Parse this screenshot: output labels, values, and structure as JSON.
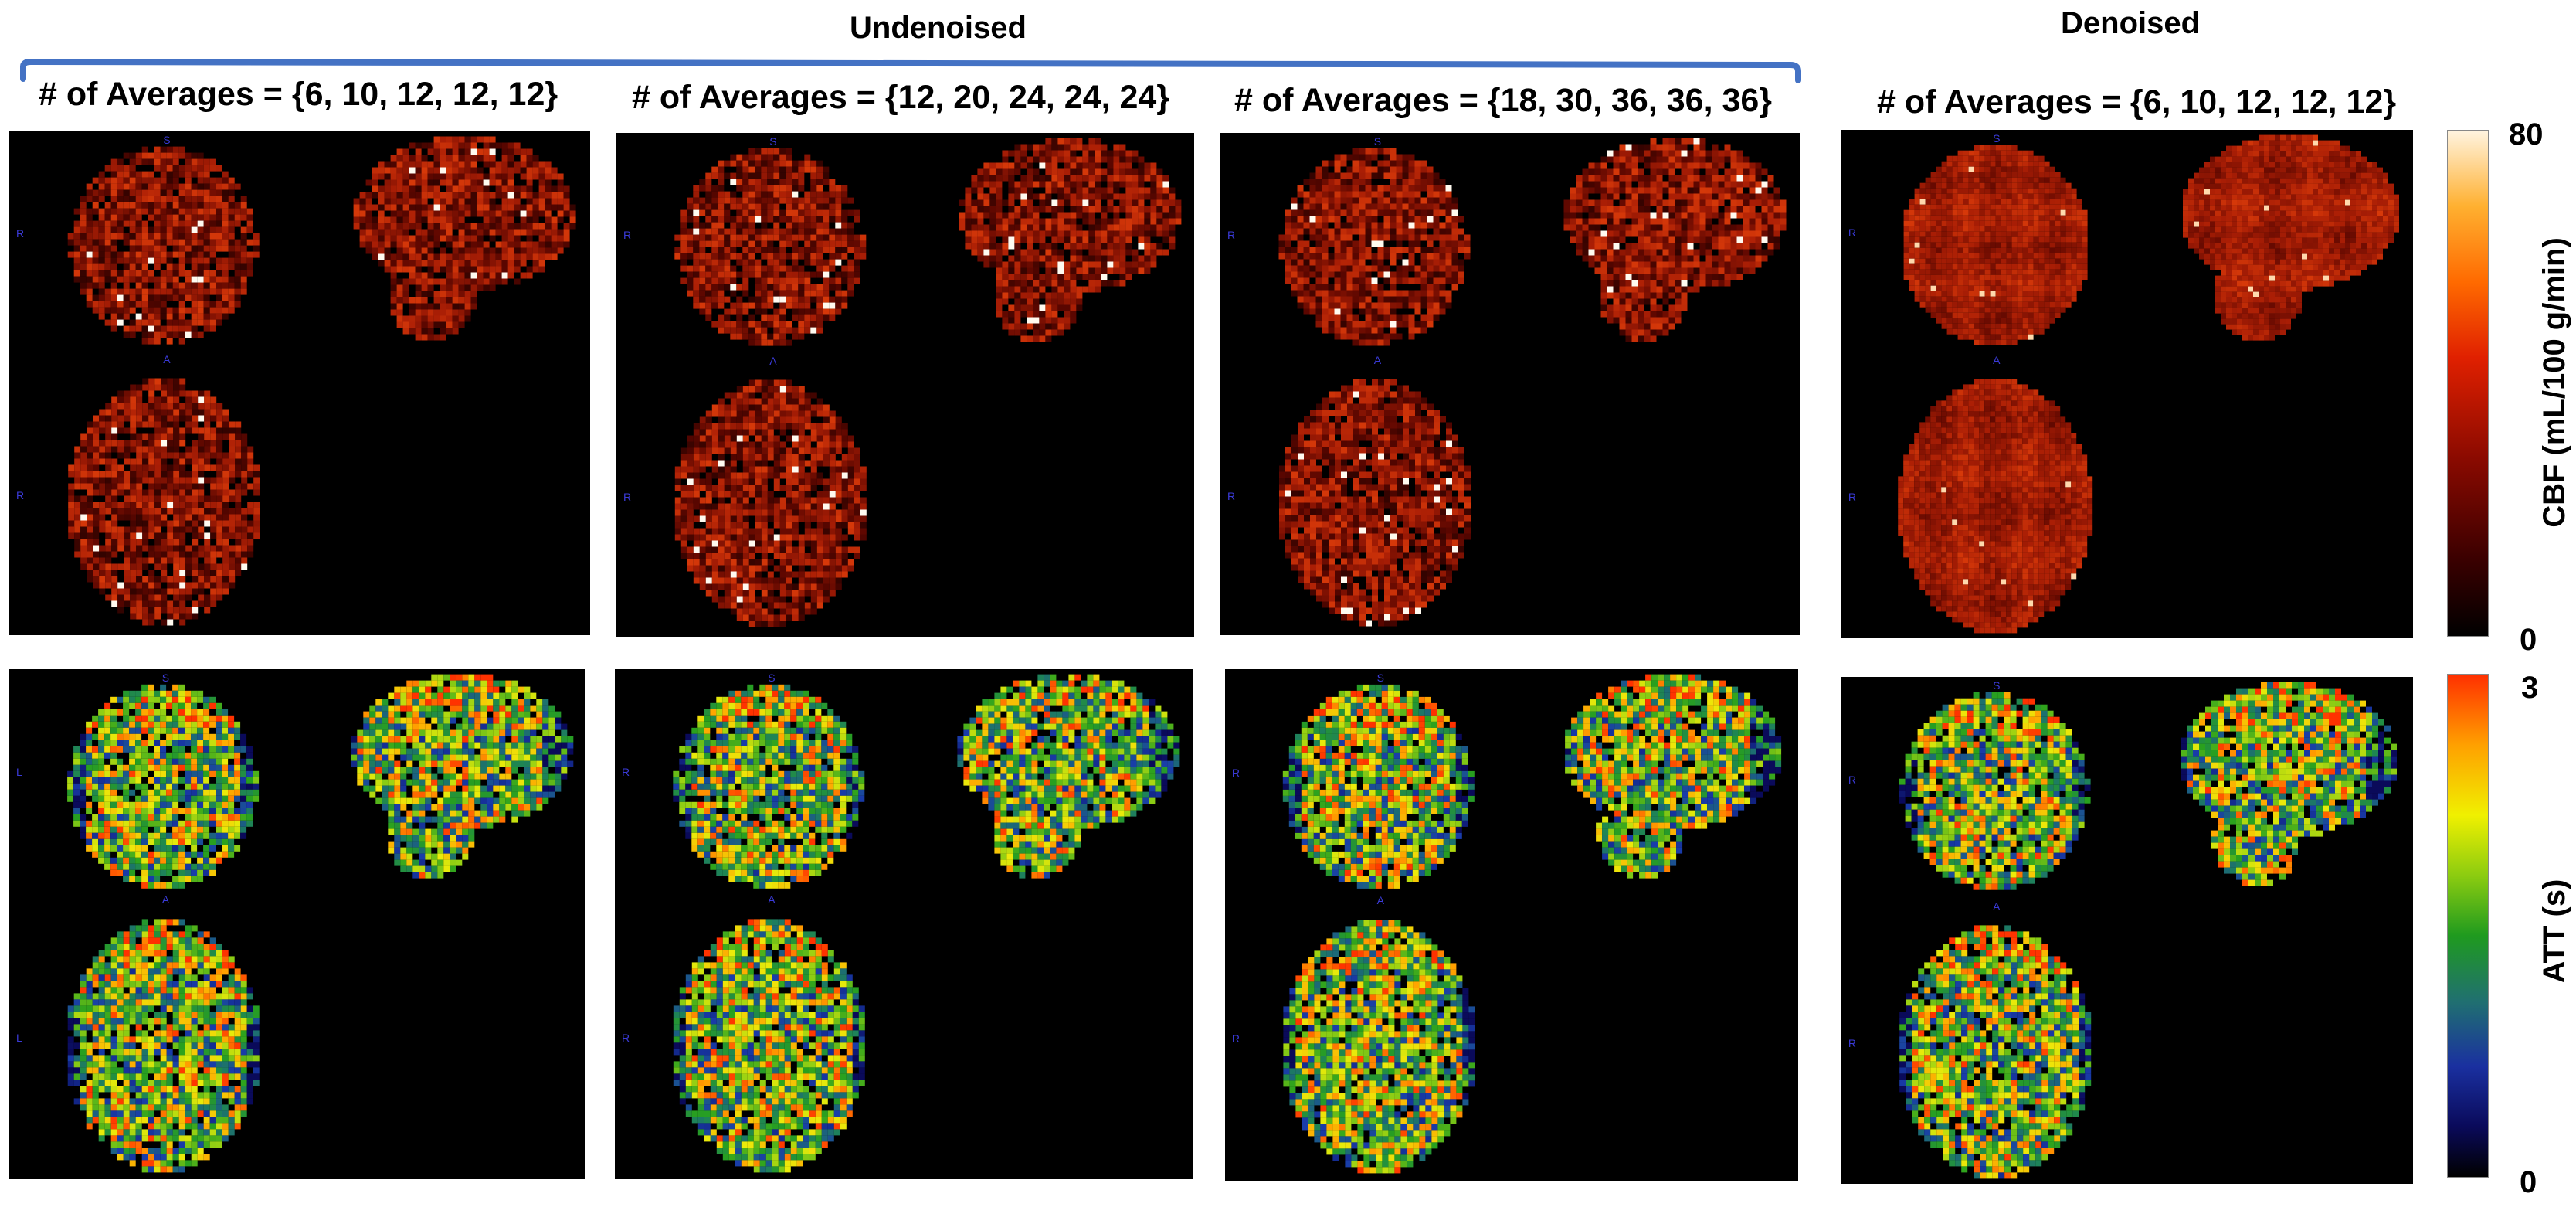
{
  "header": {
    "undenoised": "Undenoised",
    "denoised": "Denoised"
  },
  "columns": [
    {
      "title": "# of Averages =  {6, 10, 12, 12, 12}"
    },
    {
      "title": "# of Averages =  {12, 20, 24, 24, 24}"
    },
    {
      "title": "# of Averages =  {18, 30, 36, 36, 36}"
    },
    {
      "title": "# of Averages = {6, 10, 12, 12, 12}"
    }
  ],
  "orientation": {
    "superior": "S",
    "anterior": "A",
    "right": "R",
    "left": "L"
  },
  "colorbars": {
    "cbf": {
      "label": "CBF (mL/100 g/min)",
      "max": "80",
      "min": "0"
    },
    "att": {
      "label": "ATT (s)",
      "max": "3",
      "min": "0"
    }
  },
  "colors": {
    "bracket": "#4472c4",
    "orientation_text": "#3a3ad8",
    "panel_background": "#000000"
  }
}
